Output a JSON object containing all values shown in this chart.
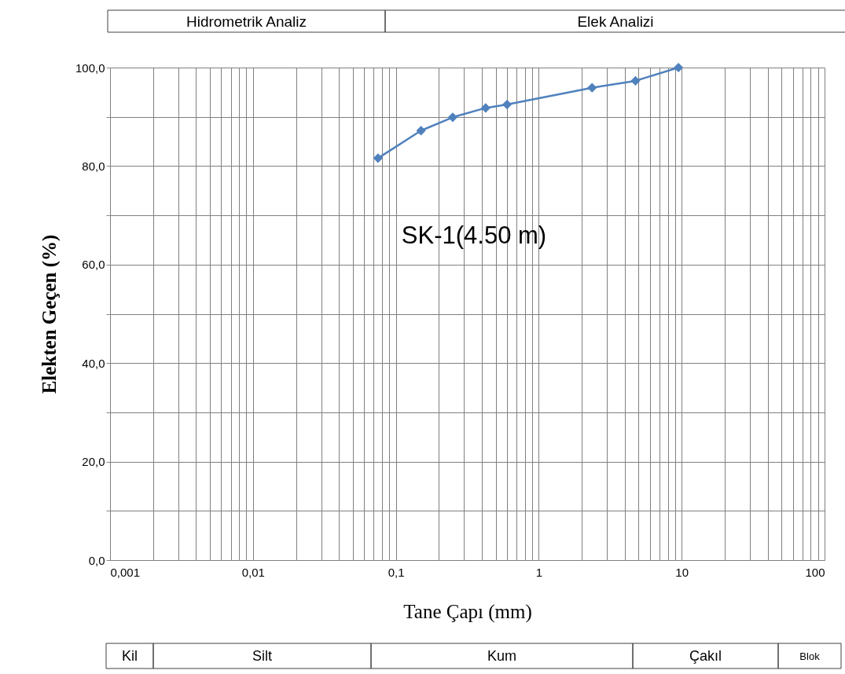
{
  "chart_data": {
    "type": "line",
    "xlabel": "Tane Çapı (mm)",
    "ylabel": "Elekten Geçen (%)",
    "x": [
      0.075,
      0.15,
      0.25,
      0.425,
      0.6,
      2.36,
      4.75,
      9.5
    ],
    "series": [
      {
        "name": "SK-1(4.50 m)",
        "color": "#4f81bd",
        "values": [
          81.6,
          87.2,
          89.9,
          91.8,
          92.5,
          95.9,
          97.3,
          100
        ]
      }
    ],
    "log": "x",
    "xlim": [
      0.001,
      100
    ],
    "ylim": [
      0,
      100
    ],
    "xticks": [
      {
        "value": 0.001,
        "label": "0,001"
      },
      {
        "value": 0.002,
        "label": null
      },
      {
        "value": 0.003,
        "label": null
      },
      {
        "value": 0.004,
        "label": null
      },
      {
        "value": 0.005,
        "label": null
      },
      {
        "value": 0.006,
        "label": null
      },
      {
        "value": 0.007,
        "label": null
      },
      {
        "value": 0.008,
        "label": null
      },
      {
        "value": 0.009,
        "label": null
      },
      {
        "value": 0.01,
        "label": "0,01"
      },
      {
        "value": 0.02,
        "label": null
      },
      {
        "value": 0.03,
        "label": null
      },
      {
        "value": 0.04,
        "label": null
      },
      {
        "value": 0.05,
        "label": null
      },
      {
        "value": 0.06,
        "label": null
      },
      {
        "value": 0.07,
        "label": null
      },
      {
        "value": 0.08,
        "label": null
      },
      {
        "value": 0.09,
        "label": null
      },
      {
        "value": 0.1,
        "label": "0,1"
      },
      {
        "value": 0.2,
        "label": null
      },
      {
        "value": 0.3,
        "label": null
      },
      {
        "value": 0.4,
        "label": null
      },
      {
        "value": 0.5,
        "label": null
      },
      {
        "value": 0.6,
        "label": null
      },
      {
        "value": 0.7,
        "label": null
      },
      {
        "value": 0.8,
        "label": null
      },
      {
        "value": 0.9,
        "label": null
      },
      {
        "value": 1,
        "label": "1"
      },
      {
        "value": 2,
        "label": null
      },
      {
        "value": 3,
        "label": null
      },
      {
        "value": 4,
        "label": null
      },
      {
        "value": 5,
        "label": null
      },
      {
        "value": 6,
        "label": null
      },
      {
        "value": 7,
        "label": null
      },
      {
        "value": 8,
        "label": null
      },
      {
        "value": 9,
        "label": null
      },
      {
        "value": 10,
        "label": "10"
      },
      {
        "value": 20,
        "label": null
      },
      {
        "value": 30,
        "label": null
      },
      {
        "value": 40,
        "label": null
      },
      {
        "value": 50,
        "label": null
      },
      {
        "value": 60,
        "label": null
      },
      {
        "value": 70,
        "label": null
      },
      {
        "value": 80,
        "label": null
      },
      {
        "value": 90,
        "label": null
      },
      {
        "value": 100,
        "label": "100"
      }
    ],
    "yticks": [
      {
        "value": 0,
        "label": "0,0"
      },
      {
        "value": 10,
        "label": null
      },
      {
        "value": 20,
        "label": "20,0"
      },
      {
        "value": 30,
        "label": null
      },
      {
        "value": 40,
        "label": "40,0"
      },
      {
        "value": 50,
        "label": null
      },
      {
        "value": 60,
        "label": "60,0"
      },
      {
        "value": 70,
        "label": null
      },
      {
        "value": 80,
        "label": "80,0"
      },
      {
        "value": 90,
        "label": null
      },
      {
        "value": 100,
        "label": "100,0"
      }
    ],
    "grid": true,
    "legend": false,
    "marker": "diamond",
    "line_style": "solid",
    "annotations": [
      "Hidrometrik Analiz",
      "Elek Analizi",
      "Kil",
      "Silt",
      "Kum",
      "Çakıl",
      "Blok"
    ]
  }
}
